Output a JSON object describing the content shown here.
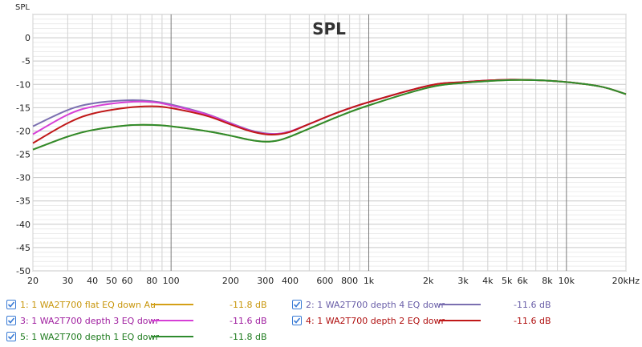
{
  "chart_data": {
    "type": "line",
    "title": "SPL",
    "ylabel": "SPL",
    "x_unit_label": "Hz",
    "xscale": "log",
    "xlim": [
      20,
      20000
    ],
    "ylim": [
      -50,
      5
    ],
    "grid": true,
    "y_ticks": [
      "0",
      "-5",
      "-10",
      "-15",
      "-20",
      "-25",
      "-30",
      "-35",
      "-40",
      "-45",
      "-50"
    ],
    "x_ticks": [
      {
        "v": 20,
        "label": "20"
      },
      {
        "v": 30,
        "label": "30"
      },
      {
        "v": 40,
        "label": "40"
      },
      {
        "v": 50,
        "label": "50"
      },
      {
        "v": 60,
        "label": "60"
      },
      {
        "v": 80,
        "label": "80"
      },
      {
        "v": 100,
        "label": "100"
      },
      {
        "v": 200,
        "label": "200"
      },
      {
        "v": 300,
        "label": "300"
      },
      {
        "v": 400,
        "label": "400"
      },
      {
        "v": 600,
        "label": "600"
      },
      {
        "v": 800,
        "label": "800"
      },
      {
        "v": 1000,
        "label": "1k"
      },
      {
        "v": 2000,
        "label": "2k"
      },
      {
        "v": 3000,
        "label": "3k"
      },
      {
        "v": 4000,
        "label": "4k"
      },
      {
        "v": 5000,
        "label": "5k"
      },
      {
        "v": 6000,
        "label": "6k"
      },
      {
        "v": 8000,
        "label": "8k"
      },
      {
        "v": 10000,
        "label": "10k"
      },
      {
        "v": 20000,
        "label": "20kHz"
      }
    ],
    "series": [
      {
        "name": "2: 1 WA2T700 depth 4 EQ dowr",
        "value_label": "-11.6 dB",
        "color": "#7b6fb0",
        "points": [
          [
            20,
            -19.0
          ],
          [
            30,
            -15.5
          ],
          [
            40,
            -14.1
          ],
          [
            60,
            -13.4
          ],
          [
            80,
            -13.6
          ],
          [
            100,
            -14.3
          ],
          [
            150,
            -16.3
          ],
          [
            200,
            -18.3
          ],
          [
            250,
            -19.8
          ],
          [
            300,
            -20.5
          ],
          [
            350,
            -20.6
          ],
          [
            400,
            -20.1
          ],
          [
            500,
            -18.5
          ],
          [
            700,
            -16.0
          ],
          [
            1000,
            -13.8
          ],
          [
            2000,
            -10.3
          ],
          [
            3000,
            -9.5
          ],
          [
            5000,
            -9.0
          ],
          [
            7000,
            -9.1
          ],
          [
            10000,
            -9.5
          ],
          [
            15000,
            -10.5
          ],
          [
            20000,
            -12.1
          ]
        ]
      },
      {
        "name": "3: 1 WA2T700 depth 3 EQ dowr",
        "value_label": "-11.6 dB",
        "color": "#d63fd6",
        "points": [
          [
            20,
            -20.7
          ],
          [
            30,
            -16.5
          ],
          [
            40,
            -14.8
          ],
          [
            60,
            -13.8
          ],
          [
            80,
            -13.8
          ],
          [
            100,
            -14.5
          ],
          [
            150,
            -16.4
          ],
          [
            200,
            -18.4
          ],
          [
            250,
            -19.9
          ],
          [
            300,
            -20.6
          ],
          [
            350,
            -20.6
          ],
          [
            400,
            -20.1
          ],
          [
            500,
            -18.5
          ],
          [
            700,
            -16.0
          ],
          [
            1000,
            -13.8
          ],
          [
            2000,
            -10.3
          ],
          [
            3000,
            -9.5
          ],
          [
            5000,
            -9.0
          ],
          [
            7000,
            -9.1
          ],
          [
            10000,
            -9.5
          ],
          [
            15000,
            -10.5
          ],
          [
            20000,
            -12.1
          ]
        ]
      },
      {
        "name": "4: 1 WA2T700 depth 2 EQ dowr",
        "value_label": "-11.6 dB",
        "color": "#c01818",
        "points": [
          [
            20,
            -22.6
          ],
          [
            30,
            -18.3
          ],
          [
            40,
            -16.3
          ],
          [
            60,
            -15.0
          ],
          [
            80,
            -14.7
          ],
          [
            100,
            -15.1
          ],
          [
            150,
            -16.7
          ],
          [
            200,
            -18.6
          ],
          [
            250,
            -20.0
          ],
          [
            300,
            -20.7
          ],
          [
            350,
            -20.7
          ],
          [
            400,
            -20.2
          ],
          [
            500,
            -18.5
          ],
          [
            700,
            -16.0
          ],
          [
            1000,
            -13.8
          ],
          [
            2000,
            -10.3
          ],
          [
            3000,
            -9.5
          ],
          [
            5000,
            -9.0
          ],
          [
            7000,
            -9.1
          ],
          [
            10000,
            -9.5
          ],
          [
            15000,
            -10.5
          ],
          [
            20000,
            -12.1
          ]
        ]
      },
      {
        "name": "1: 1 WA2T700 flat EQ down Au",
        "value_label": "-11.8 dB",
        "color": "#d4a017",
        "points": [
          [
            20,
            -24.0
          ],
          [
            30,
            -21.2
          ],
          [
            40,
            -19.8
          ],
          [
            60,
            -18.8
          ],
          [
            80,
            -18.7
          ],
          [
            100,
            -19.0
          ],
          [
            150,
            -20.0
          ],
          [
            200,
            -21.0
          ],
          [
            250,
            -21.9
          ],
          [
            300,
            -22.3
          ],
          [
            350,
            -22.0
          ],
          [
            400,
            -21.2
          ],
          [
            500,
            -19.5
          ],
          [
            700,
            -16.9
          ],
          [
            1000,
            -14.5
          ],
          [
            2000,
            -10.7
          ],
          [
            3000,
            -9.7
          ],
          [
            5000,
            -9.1
          ],
          [
            7000,
            -9.1
          ],
          [
            10000,
            -9.5
          ],
          [
            15000,
            -10.5
          ],
          [
            20000,
            -12.1
          ]
        ]
      },
      {
        "name": "5: 1 WA2T700 depth 1 EQ dowr",
        "value_label": "-11.8 dB",
        "color": "#2e8b2e",
        "points": [
          [
            20,
            -24.0
          ],
          [
            30,
            -21.2
          ],
          [
            40,
            -19.8
          ],
          [
            60,
            -18.8
          ],
          [
            80,
            -18.7
          ],
          [
            100,
            -19.0
          ],
          [
            150,
            -20.0
          ],
          [
            200,
            -21.0
          ],
          [
            250,
            -21.9
          ],
          [
            300,
            -22.3
          ],
          [
            350,
            -22.0
          ],
          [
            400,
            -21.2
          ],
          [
            500,
            -19.5
          ],
          [
            700,
            -16.9
          ],
          [
            1000,
            -14.5
          ],
          [
            2000,
            -10.7
          ],
          [
            3000,
            -9.7
          ],
          [
            5000,
            -9.1
          ],
          [
            7000,
            -9.1
          ],
          [
            10000,
            -9.5
          ],
          [
            15000,
            -10.5
          ],
          [
            20000,
            -12.1
          ]
        ]
      }
    ]
  },
  "legend": {
    "items": [
      {
        "label": "1: 1 WA2T700 flat EQ down Au",
        "value": "-11.8 dB",
        "text_color": "#c8960c",
        "line_color": "#d4a017",
        "value_color": "#c8960c"
      },
      {
        "label": "2: 1 WA2T700 depth 4 EQ dowr",
        "value": "-11.6 dB",
        "text_color": "#6a5fa8",
        "line_color": "#7b6fb0",
        "value_color": "#6a5fa8"
      },
      {
        "label": "3: 1 WA2T700 depth 3 EQ dowr",
        "value": "-11.6 dB",
        "text_color": "#a020a0",
        "line_color": "#d63fd6",
        "value_color": "#a020a0"
      },
      {
        "label": "4: 1 WA2T700 depth 2 EQ dowr",
        "value": "-11.6 dB",
        "text_color": "#b01010",
        "line_color": "#c01818",
        "value_color": "#b01010"
      },
      {
        "label": "5: 1 WA2T700 depth 1 EQ dowr",
        "value": "-11.8 dB",
        "text_color": "#1e7b1e",
        "line_color": "#2e8b2e",
        "value_color": "#1e7b1e"
      }
    ]
  }
}
